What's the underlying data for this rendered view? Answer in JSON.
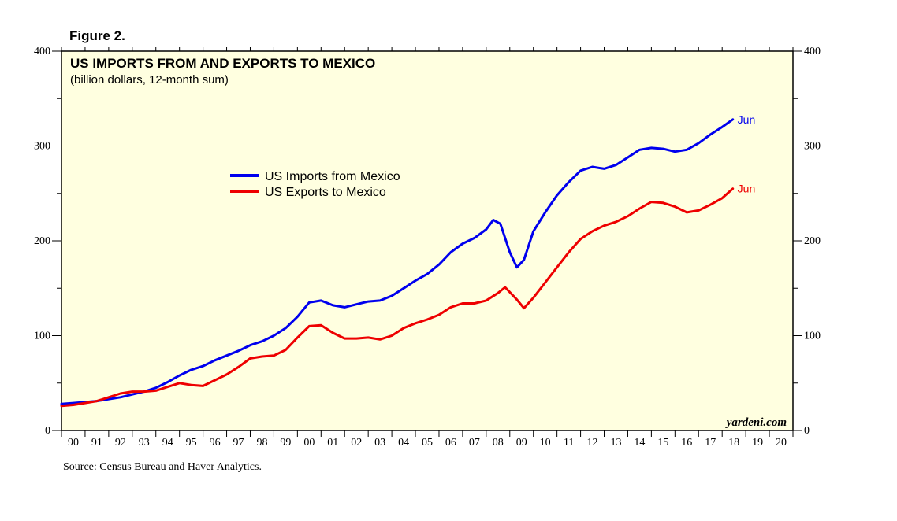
{
  "figure_label": "Figure 2.",
  "source": "Source: Census Bureau and Haver Analytics.",
  "watermark": "yardeni.com",
  "colors": {
    "background": "#ffffe0",
    "imports": "#0000ee",
    "exports": "#ee0000"
  },
  "chart_data": {
    "type": "line",
    "title": "US IMPORTS FROM AND EXPORTS TO MEXICO",
    "subtitle": "(billion dollars, 12-month sum)",
    "xlabel": "",
    "ylabel": "",
    "xlim": [
      1990,
      2021
    ],
    "ylim": [
      0,
      400
    ],
    "y_ticks": [
      "0",
      "100",
      "200",
      "300",
      "400"
    ],
    "x_ticks": [
      "90",
      "91",
      "92",
      "93",
      "94",
      "95",
      "96",
      "97",
      "98",
      "99",
      "00",
      "01",
      "02",
      "03",
      "04",
      "05",
      "06",
      "07",
      "08",
      "09",
      "10",
      "11",
      "12",
      "13",
      "14",
      "15",
      "16",
      "17",
      "18",
      "19",
      "20"
    ],
    "grid": false,
    "legend_position": "upper-left-center",
    "series": [
      {
        "name": "US Imports from Mexico",
        "color": "#0000ee",
        "end_label": "Jun",
        "x": [
          1990.0,
          1990.5,
          1991.0,
          1991.5,
          1992.0,
          1992.5,
          1993.0,
          1993.5,
          1994.0,
          1994.5,
          1995.0,
          1995.5,
          1996.0,
          1996.5,
          1997.0,
          1997.5,
          1998.0,
          1998.5,
          1999.0,
          1999.5,
          2000.0,
          2000.5,
          2001.0,
          2001.5,
          2002.0,
          2002.5,
          2003.0,
          2003.5,
          2004.0,
          2004.5,
          2005.0,
          2005.5,
          2006.0,
          2006.5,
          2007.0,
          2007.5,
          2008.0,
          2008.3,
          2008.6,
          2009.0,
          2009.3,
          2009.6,
          2010.0,
          2010.5,
          2011.0,
          2011.5,
          2012.0,
          2012.5,
          2013.0,
          2013.5,
          2014.0,
          2014.5,
          2015.0,
          2015.5,
          2016.0,
          2016.5,
          2017.0,
          2017.5,
          2018.0,
          2018.45
        ],
        "values": [
          28,
          29,
          30,
          31,
          33,
          35,
          38,
          41,
          45,
          51,
          58,
          64,
          68,
          74,
          79,
          84,
          90,
          94,
          100,
          108,
          120,
          135,
          137,
          132,
          130,
          133,
          136,
          137,
          142,
          150,
          158,
          165,
          175,
          188,
          197,
          203,
          212,
          222,
          218,
          188,
          172,
          180,
          210,
          230,
          248,
          262,
          274,
          278,
          276,
          280,
          288,
          296,
          298,
          297,
          294,
          296,
          303,
          312,
          320,
          328
        ]
      },
      {
        "name": "US Exports to Mexico",
        "color": "#ee0000",
        "end_label": "Jun",
        "x": [
          1990.0,
          1990.5,
          1991.0,
          1991.5,
          1992.0,
          1992.5,
          1993.0,
          1993.5,
          1994.0,
          1994.5,
          1995.0,
          1995.5,
          1996.0,
          1996.5,
          1997.0,
          1997.5,
          1998.0,
          1998.5,
          1999.0,
          1999.5,
          2000.0,
          2000.5,
          2001.0,
          2001.5,
          2002.0,
          2002.5,
          2003.0,
          2003.5,
          2004.0,
          2004.5,
          2005.0,
          2005.5,
          2006.0,
          2006.5,
          2007.0,
          2007.5,
          2008.0,
          2008.5,
          2008.8,
          2009.3,
          2009.6,
          2010.0,
          2010.5,
          2011.0,
          2011.5,
          2012.0,
          2012.5,
          2013.0,
          2013.5,
          2014.0,
          2014.5,
          2015.0,
          2015.5,
          2016.0,
          2016.5,
          2017.0,
          2017.5,
          2018.0,
          2018.45
        ],
        "values": [
          26,
          27,
          29,
          31,
          35,
          39,
          41,
          41,
          42,
          46,
          50,
          48,
          47,
          53,
          59,
          67,
          76,
          78,
          79,
          85,
          98,
          110,
          111,
          103,
          97,
          97,
          98,
          96,
          100,
          108,
          113,
          117,
          122,
          130,
          134,
          134,
          137,
          145,
          151,
          138,
          129,
          140,
          156,
          172,
          188,
          202,
          210,
          216,
          220,
          226,
          234,
          241,
          240,
          236,
          230,
          232,
          238,
          245,
          255
        ]
      }
    ]
  }
}
